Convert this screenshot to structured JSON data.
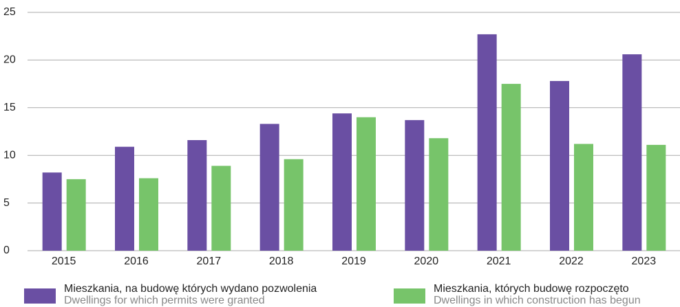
{
  "chart_data": {
    "type": "bar",
    "categories": [
      "2015",
      "2016",
      "2017",
      "2018",
      "2019",
      "2020",
      "2021",
      "2022",
      "2023"
    ],
    "series": [
      {
        "name": "Mieszkania, na budowę których wydano pozwolenia",
        "name_en": "Dwellings for which permits were granted",
        "color": "#6a4fa3",
        "values": [
          8.2,
          10.9,
          11.6,
          13.3,
          14.4,
          13.7,
          22.7,
          17.8,
          20.6
        ]
      },
      {
        "name": "Mieszkania, których budowę rozpoczęto",
        "name_en": "Dwellings in which construction has begun",
        "color": "#77c46a",
        "values": [
          7.5,
          7.6,
          8.9,
          9.6,
          14.0,
          11.8,
          17.5,
          11.2,
          11.1
        ]
      }
    ],
    "ylim": [
      0,
      25
    ],
    "yticks": [
      0,
      5,
      10,
      15,
      20,
      25
    ],
    "grid": true
  }
}
